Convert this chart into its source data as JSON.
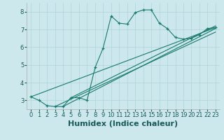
{
  "title": "",
  "xlabel": "Humidex (Indice chaleur)",
  "bg_color": "#cce8ec",
  "line_color": "#1a7a6e",
  "xlim": [
    -0.5,
    23.5
  ],
  "ylim": [
    2.5,
    8.5
  ],
  "xticks": [
    0,
    1,
    2,
    3,
    4,
    5,
    6,
    7,
    8,
    9,
    10,
    11,
    12,
    13,
    14,
    15,
    16,
    17,
    18,
    19,
    20,
    21,
    22,
    23
  ],
  "yticks": [
    3,
    4,
    5,
    6,
    7,
    8
  ],
  "main_series_x": [
    0,
    1,
    2,
    3,
    4,
    5,
    6,
    7,
    8,
    9,
    10,
    11,
    12,
    13,
    14,
    15,
    16,
    17,
    18,
    19,
    20,
    21,
    22,
    23
  ],
  "main_series_y": [
    3.2,
    3.0,
    2.7,
    2.65,
    2.65,
    3.15,
    3.15,
    3.0,
    4.85,
    5.95,
    7.75,
    7.35,
    7.3,
    7.95,
    8.1,
    8.1,
    7.35,
    7.05,
    6.55,
    6.45,
    6.5,
    6.7,
    7.05,
    7.1
  ],
  "line1_x": [
    0,
    23
  ],
  "line1_y": [
    3.2,
    7.1
  ],
  "line2_x": [
    3,
    23
  ],
  "line2_y": [
    2.65,
    6.85
  ],
  "line3_x": [
    4,
    23
  ],
  "line3_y": [
    2.65,
    7.05
  ],
  "line4_x": [
    5,
    23
  ],
  "line4_y": [
    3.15,
    7.2
  ],
  "grid_color": "#aed4d8",
  "xlabel_fontsize": 8,
  "tick_fontsize": 6
}
